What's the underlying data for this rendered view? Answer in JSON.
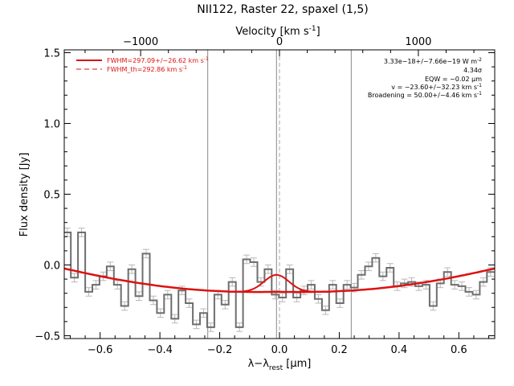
{
  "chart_data": {
    "type": "line",
    "title": "NII122, Raster 22, spaxel (1,5)",
    "xlabel": "λ−λ",
    "xlabel_sub": "rest",
    "xlabel_unit": " [μm]",
    "ylabel": "Flux density [Jy]",
    "top_axis_label": "Velocity [km s",
    "top_axis_sup": "-1",
    "top_axis_close": "]",
    "xlim": [
      -0.72,
      0.72
    ],
    "ylim": [
      -0.52,
      1.52
    ],
    "x_ticks": [
      -0.6,
      -0.4,
      -0.2,
      0.0,
      0.2,
      0.4,
      0.6
    ],
    "x_tick_labels": [
      "−0.6",
      "−0.4",
      "−0.2",
      "0.0",
      "0.2",
      "0.4",
      "0.6"
    ],
    "y_ticks": [
      -0.5,
      0.0,
      0.5,
      1.0,
      1.5
    ],
    "y_tick_labels": [
      "−0.5",
      "0.0",
      "0.5",
      "1.0",
      "1.5"
    ],
    "top_ticks_um": [
      -0.4645,
      0.0,
      0.4645
    ],
    "top_tick_labels": [
      "−1000",
      "0",
      "1000"
    ],
    "vlines": [
      -0.24,
      -0.01,
      0.24
    ],
    "dashed_vline": 0.0,
    "legend": {
      "placement": "top-left",
      "fit_label": "FWHM=297.09+/−26.62 km s",
      "fit_sup": "-1",
      "th_label": "FWHM_th=292.86 km s",
      "th_sup": "-1"
    },
    "annotations": [
      {
        "text": "3.33e−18+/−7.66e−19 W m",
        "sup": "-2"
      },
      {
        "text": "4.34σ",
        "sup": ""
      },
      {
        "text": "EQW = −0.02 μm",
        "sup": ""
      },
      {
        "text": "v = −23.60+/−32.23 km s",
        "sup": "-1"
      },
      {
        "text": "Broadening = 50.00+/−4.46 km s",
        "sup": "-1"
      }
    ],
    "series": [
      {
        "kind": "step",
        "x": [
          -0.71,
          -0.686,
          -0.662,
          -0.638,
          -0.614,
          -0.59,
          -0.566,
          -0.542,
          -0.518,
          -0.494,
          -0.47,
          -0.446,
          -0.422,
          -0.398,
          -0.374,
          -0.35,
          -0.326,
          -0.302,
          -0.278,
          -0.254,
          -0.23,
          -0.206,
          -0.182,
          -0.158,
          -0.134,
          -0.11,
          -0.086,
          -0.062,
          -0.038,
          -0.014,
          0.01,
          0.034,
          0.058,
          0.082,
          0.106,
          0.13,
          0.154,
          0.178,
          0.202,
          0.226,
          0.25,
          0.274,
          0.298,
          0.322,
          0.346,
          0.37,
          0.394,
          0.418,
          0.442,
          0.466,
          0.49,
          0.514,
          0.538,
          0.562,
          0.586,
          0.61,
          0.634,
          0.658,
          0.682,
          0.706
        ],
        "values": [
          0.23,
          -0.09,
          0.23,
          -0.19,
          -0.14,
          -0.08,
          -0.01,
          -0.14,
          -0.29,
          -0.03,
          -0.22,
          0.08,
          -0.25,
          -0.34,
          -0.21,
          -0.38,
          -0.18,
          -0.27,
          -0.42,
          -0.34,
          -0.44,
          -0.21,
          -0.28,
          -0.12,
          -0.44,
          0.04,
          0.02,
          -0.12,
          -0.03,
          -0.21,
          -0.23,
          -0.03,
          -0.23,
          -0.18,
          -0.14,
          -0.24,
          -0.32,
          -0.14,
          -0.27,
          -0.14,
          -0.16,
          -0.07,
          -0.01,
          0.05,
          -0.08,
          -0.02,
          -0.15,
          -0.13,
          -0.12,
          -0.15,
          -0.14,
          -0.29,
          -0.13,
          -0.05,
          -0.14,
          -0.15,
          -0.19,
          -0.21,
          -0.12,
          -0.05
        ],
        "error": 0.03
      },
      {
        "kind": "baseline",
        "x": [
          -0.72,
          -0.64,
          -0.56,
          -0.48,
          -0.4,
          -0.32,
          -0.24,
          -0.16,
          -0.08,
          0.0,
          0.08,
          0.16,
          0.24,
          0.32,
          0.4,
          0.48,
          0.56,
          0.64,
          0.72
        ],
        "values": [
          -0.025,
          -0.062,
          -0.096,
          -0.125,
          -0.149,
          -0.168,
          -0.181,
          -0.189,
          -0.191,
          -0.19,
          -0.191,
          -0.189,
          -0.181,
          -0.168,
          -0.149,
          -0.125,
          -0.096,
          -0.062,
          -0.025
        ]
      },
      {
        "kind": "fit",
        "peak": 0.12,
        "center": -0.01,
        "sigma": 0.042
      }
    ],
    "colors": {
      "data": "#6e6e6e",
      "error": "#b8b8b8",
      "fit": "#dd1111",
      "axis": "#000000",
      "vline": "#888888"
    }
  }
}
